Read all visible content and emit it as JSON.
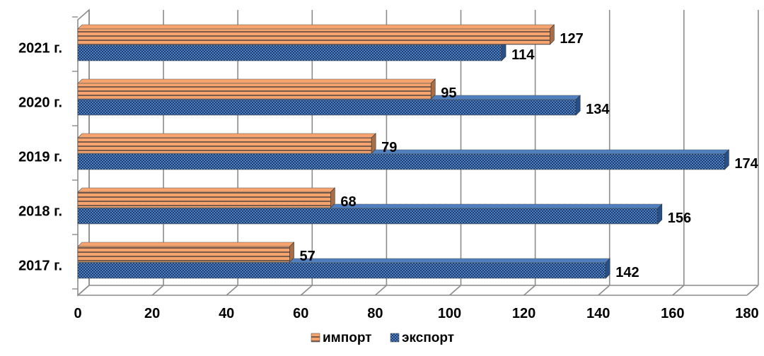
{
  "chart_data": {
    "type": "bar",
    "orientation": "horizontal",
    "categories": [
      "2017 г.",
      "2018 г.",
      "2019 г.",
      "2020 г.",
      "2021 г."
    ],
    "series": [
      {
        "name": "импорт",
        "values": [
          57,
          68,
          79,
          95,
          127
        ],
        "color": "#f6a36e"
      },
      {
        "name": "экспорт",
        "values": [
          142,
          156,
          174,
          134,
          114
        ],
        "color": "#4f7fbf"
      }
    ],
    "data_labels": {
      "импорт": [
        "57",
        "68",
        "79",
        "95",
        "127"
      ],
      "экспорт": [
        "142",
        "156",
        "174",
        "134",
        "114"
      ]
    },
    "x_ticks": [
      "0",
      "20",
      "40",
      "60",
      "80",
      "100",
      "120",
      "140",
      "160",
      "180"
    ],
    "xlim": [
      0,
      180
    ],
    "grid": true,
    "legend_position": "bottom",
    "title": "",
    "xlabel": "",
    "ylabel": ""
  }
}
